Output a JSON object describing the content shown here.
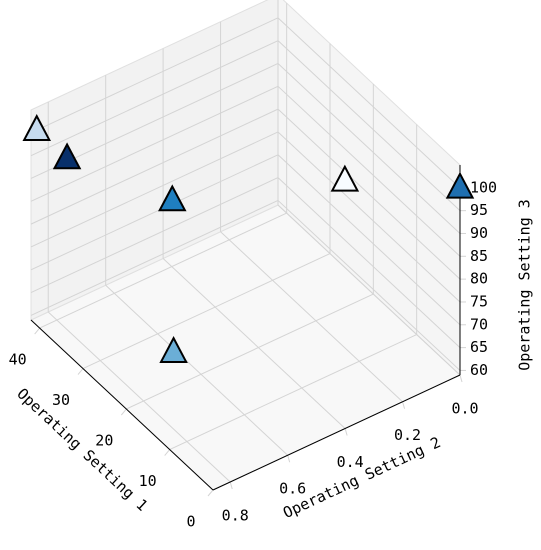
{
  "chart_data": {
    "type": "scatter3d",
    "x_label": "Operating Setting 1",
    "y_label": "Operating Setting 2",
    "z_label": "Operating Setting 3",
    "x": [
      42,
      35,
      20,
      25,
      10,
      0
    ],
    "y": [
      0.84,
      0.84,
      0.7,
      0.62,
      0.25,
      0
    ],
    "z": [
      100,
      100,
      100,
      60,
      100,
      100
    ],
    "colors": [
      "#c6dbef",
      "#08306b",
      "#1f7fc0",
      "#6baed6",
      "#f7fbff",
      "#1f6fb0"
    ],
    "marker": "triangle",
    "xlim": [
      0,
      42
    ],
    "xticks": [
      0,
      10,
      20,
      30,
      40
    ],
    "ylim": [
      0,
      0.86
    ],
    "yticks": [
      {
        "value": 0,
        "label": "0.0"
      },
      0.2,
      0.4,
      0.6,
      0.8
    ],
    "zlim": [
      59,
      105
    ],
    "zticks": [
      60,
      65,
      70,
      75,
      80,
      85,
      90,
      95,
      100
    ],
    "grid": true
  }
}
